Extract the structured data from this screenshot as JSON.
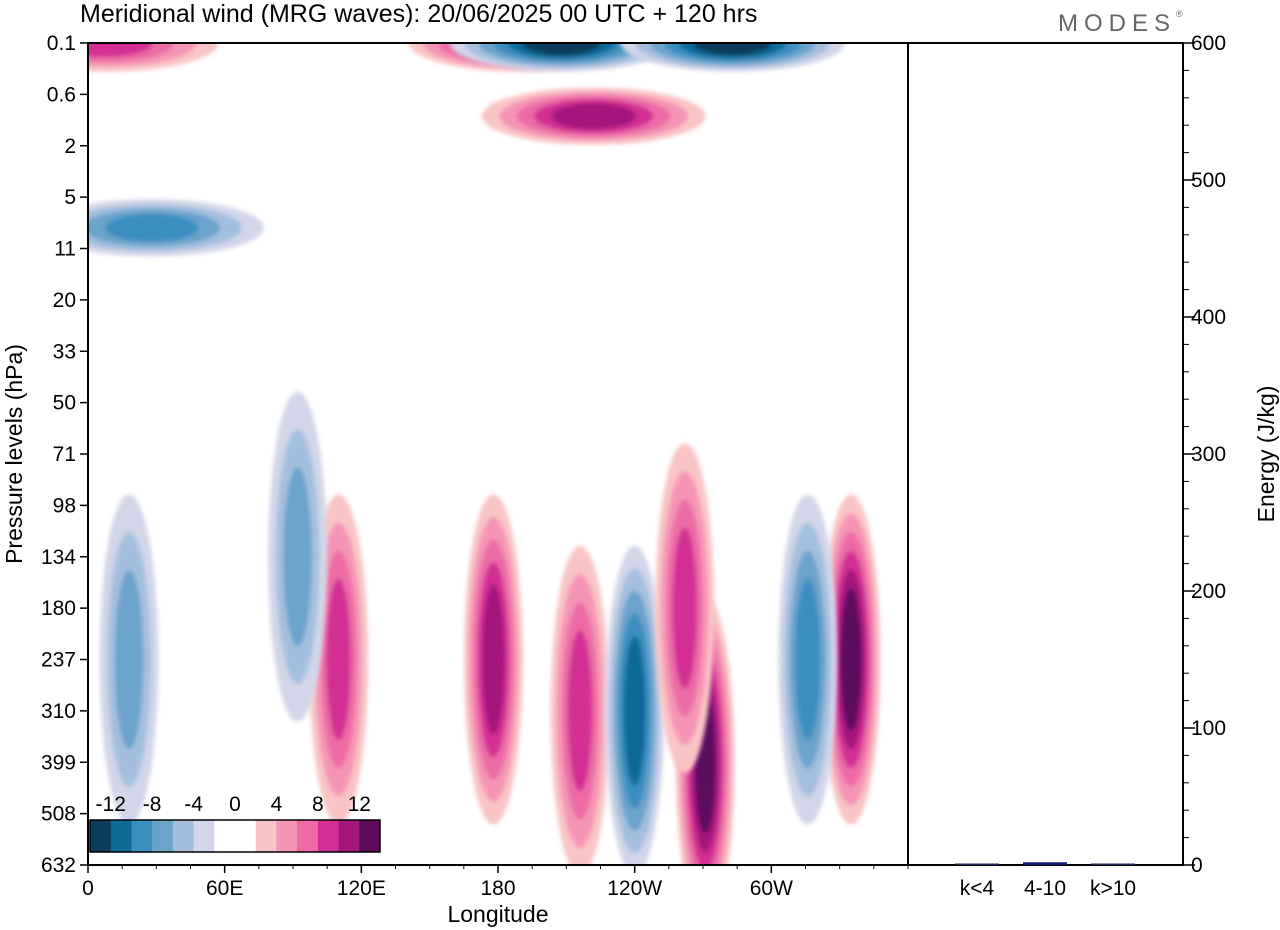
{
  "title": "Meridional wind (MRG waves):  20/06/2025  00 UTC  + 120 hrs",
  "logo": "MODES",
  "logo_mark": "®",
  "chart_data": [
    {
      "type": "heatmap",
      "title": "Meridional wind (MRG waves):  20/06/2025  00 UTC  + 120 hrs",
      "xlabel": "Longitude",
      "ylabel": "Pressure levels (hPa)",
      "x_ticks": [
        "0",
        "60E",
        "120E",
        "180",
        "120W",
        "60W"
      ],
      "x_tick_degrees_east": [
        0,
        60,
        120,
        180,
        240,
        300
      ],
      "xlim_degrees_east": [
        0,
        360
      ],
      "y_ticks": [
        "0.1",
        "0.6",
        "2",
        "5",
        "11",
        "20",
        "33",
        "50",
        "71",
        "98",
        "134",
        "180",
        "237",
        "310",
        "399",
        "508",
        "632"
      ],
      "colorbar": {
        "tick_labels": [
          "-12",
          "-8",
          "-4",
          "0",
          "4",
          "8",
          "12"
        ],
        "levels": [
          -14,
          -12,
          -10,
          -8,
          -6,
          -4,
          -2,
          0,
          2,
          4,
          6,
          8,
          10,
          12,
          14
        ],
        "colors": [
          "#0b3d5c",
          "#0f6a98",
          "#3a8ec0",
          "#6aa3cc",
          "#a4bfde",
          "#d2d6e8",
          "#ffffff",
          "#ffffff",
          "#f9c4c4",
          "#f595b5",
          "#ec6aa6",
          "#d22e93",
          "#a3177d",
          "#5c0a5e"
        ],
        "placement": "bottom-left"
      },
      "features": [
        {
          "lon": 190,
          "level": "0.1",
          "value": 13
        },
        {
          "lon": 208,
          "level": "0.1",
          "value": -13
        },
        {
          "lon": 283,
          "level": "0.1",
          "value": -13
        },
        {
          "lon": 8,
          "level": "0.1",
          "value": 9
        },
        {
          "lon": 222,
          "level": "1",
          "value": 10
        },
        {
          "lon": 28,
          "level": "8",
          "value": -9
        },
        {
          "lon": 178,
          "level": "237",
          "value": 11
        },
        {
          "lon": 216,
          "level": "310",
          "value": 9
        },
        {
          "lon": 240,
          "level": "310",
          "value": -11
        },
        {
          "lon": 271,
          "level": "399",
          "value": 12
        },
        {
          "lon": 335,
          "level": "237",
          "value": 13
        },
        {
          "lon": 316,
          "level": "237",
          "value": -8
        },
        {
          "lon": 262,
          "level": "180",
          "value": 9
        },
        {
          "lon": 110,
          "level": "237",
          "value": 9
        },
        {
          "lon": 18,
          "level": "237",
          "value": -6
        },
        {
          "lon": 92,
          "level": "134",
          "value": -7
        }
      ]
    },
    {
      "type": "bar",
      "categories": [
        "k<4",
        "4-10",
        "k>10"
      ],
      "values": [
        1,
        2,
        0.5
      ],
      "ylabel": "Energy (J/kg)",
      "ylim": [
        0,
        600
      ],
      "y_ticks": [
        0,
        100,
        200,
        300,
        400,
        500,
        600
      ],
      "colors": [
        "#1e2a5c",
        "#0f1c6e",
        "#1e2a5c"
      ]
    }
  ]
}
